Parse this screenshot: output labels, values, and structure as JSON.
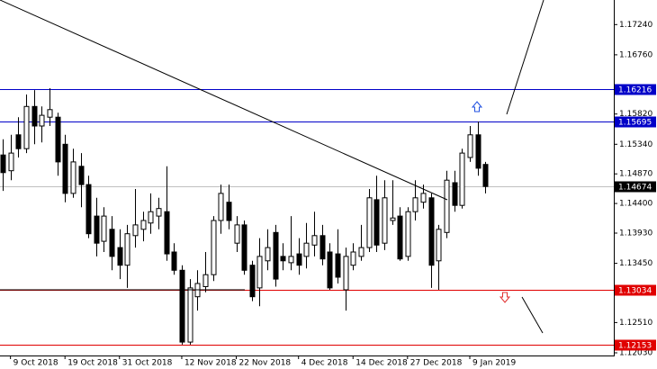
{
  "chart_data": {
    "type": "candlestick",
    "categories": [
      null,
      "9 Oct 2018",
      null,
      null,
      null,
      null,
      null,
      null,
      "19 Oct 2018",
      null,
      null,
      null,
      null,
      null,
      null,
      "31 Oct 2018",
      null,
      null,
      null,
      null,
      null,
      null,
      null,
      "12 Nov 2018",
      null,
      null,
      null,
      null,
      null,
      null,
      "22 Nov 2018",
      null,
      null,
      null,
      null,
      null,
      null,
      null,
      "4 Dec 2018",
      null,
      null,
      null,
      null,
      null,
      null,
      "14 Dec 2018",
      null,
      null,
      null,
      null,
      null,
      null,
      "27 Dec 2018",
      null,
      null,
      null,
      null,
      null,
      null,
      null,
      "9 Jan 2019",
      null,
      null
    ],
    "open": [
      1.1517,
      1.1492,
      1.1549,
      1.1527,
      1.1594,
      1.1563,
      1.1577,
      1.1577,
      1.1534,
      1.1456,
      1.1499,
      1.147,
      1.142,
      1.138,
      1.1399,
      1.137,
      1.1342,
      1.1389,
      1.1399,
      1.1409,
      1.142,
      1.1427,
      1.1363,
      1.1334,
      1.122,
      1.1292,
      1.1308,
      1.1327,
      1.1413,
      1.1442,
      1.1377,
      1.1406,
      1.1342,
      1.1306,
      1.1349,
      1.1394,
      1.1356,
      1.1346,
      1.136,
      1.1356,
      1.1374,
      1.1389,
      1.1363,
      1.136,
      1.1303,
      1.1342,
      1.1356,
      1.137,
      1.1446,
      1.1377,
      1.1413,
      1.142,
      1.1356,
      1.1427,
      1.1442,
      1.1449,
      1.1349,
      1.1394,
      1.1473,
      1.1437,
      1.1513,
      1.1549,
      1.1502
    ],
    "high": [
      1.1542,
      1.1549,
      1.1577,
      1.1613,
      1.162,
      1.1594,
      1.1623,
      1.1584,
      1.1549,
      1.1527,
      1.152,
      1.1484,
      1.1449,
      1.1434,
      1.142,
      1.1399,
      1.1406,
      1.1463,
      1.1427,
      1.1456,
      1.1449,
      1.1499,
      1.1377,
      1.1342,
      1.132,
      1.1334,
      1.1363,
      1.142,
      1.147,
      1.147,
      1.142,
      1.1413,
      1.1349,
      1.1385,
      1.1399,
      1.1406,
      1.1377,
      1.142,
      1.1385,
      1.1409,
      1.1427,
      1.1406,
      1.1377,
      1.1399,
      1.137,
      1.1377,
      1.1406,
      1.1463,
      1.1484,
      1.1477,
      1.1477,
      1.1434,
      1.1434,
      1.1477,
      1.147,
      1.1456,
      1.1406,
      1.1492,
      1.1492,
      1.1527,
      1.1563,
      1.157,
      1.1506
    ],
    "low": [
      1.146,
      1.1477,
      1.1513,
      1.152,
      1.1534,
      1.1537,
      1.1563,
      1.1484,
      1.1442,
      1.1449,
      1.1434,
      1.1385,
      1.1356,
      1.1363,
      1.1334,
      1.132,
      1.1306,
      1.137,
      1.138,
      1.1392,
      1.1399,
      1.1349,
      1.1327,
      1.1216,
      1.1216,
      1.127,
      1.1299,
      1.1317,
      1.1392,
      1.1399,
      1.1363,
      1.1327,
      1.1285,
      1.1277,
      1.1334,
      1.1308,
      1.1334,
      1.1334,
      1.1327,
      1.1337,
      1.1356,
      1.1342,
      1.1303,
      1.1313,
      1.127,
      1.1334,
      1.1349,
      1.1363,
      1.1363,
      1.1366,
      1.1406,
      1.1349,
      1.1349,
      1.1413,
      1.1432,
      1.1306,
      1.1303,
      1.1385,
      1.1427,
      1.1432,
      1.1506,
      1.1484,
      1.1456
    ],
    "close": [
      1.1489,
      1.152,
      1.1527,
      1.1594,
      1.1563,
      1.158,
      1.1589,
      1.1506,
      1.1456,
      1.1506,
      1.147,
      1.1392,
      1.1377,
      1.142,
      1.1356,
      1.1342,
      1.1392,
      1.1406,
      1.1413,
      1.1427,
      1.1432,
      1.136,
      1.1334,
      1.122,
      1.1306,
      1.1313,
      1.1327,
      1.1413,
      1.1456,
      1.1413,
      1.1406,
      1.1334,
      1.1292,
      1.1356,
      1.137,
      1.132,
      1.1349,
      1.1356,
      1.1342,
      1.1377,
      1.1389,
      1.1352,
      1.1306,
      1.1323,
      1.1356,
      1.1363,
      1.137,
      1.1449,
      1.1374,
      1.1449,
      1.1417,
      1.1352,
      1.1427,
      1.1449,
      1.1456,
      1.1342,
      1.1399,
      1.1477,
      1.1437,
      1.152,
      1.1549,
      1.1496,
      1.1467
    ],
    "ylim": [
      1.11987,
      1.1763
    ],
    "yticks": [
      {
        "value": 1.1724,
        "label": "1.17240"
      },
      {
        "value": 1.1676,
        "label": "1.16760"
      },
      {
        "value": 1.1582,
        "label": "1.15820"
      },
      {
        "value": 1.1534,
        "label": "1.15340"
      },
      {
        "value": 1.1487,
        "label": "1.14870"
      },
      {
        "value": 1.144,
        "label": "1.14400"
      },
      {
        "value": 1.1393,
        "label": "1.13930"
      },
      {
        "value": 1.1345,
        "label": "1.13450"
      },
      {
        "value": 1.1251,
        "label": "1.12510"
      },
      {
        "value": 1.1203,
        "label": "1.12030"
      }
    ],
    "levels": [
      {
        "value": 1.16216,
        "color": "#0000c8"
      },
      {
        "value": 1.15695,
        "color": "#0000c8"
      },
      {
        "value": 1.14674,
        "color": "#c0c0c0",
        "label_color": "#000000"
      },
      {
        "value": 1.13034,
        "color": "#e00000"
      },
      {
        "value": 1.12153,
        "color": "#e00000"
      }
    ],
    "up_color": "#ffffff",
    "down_color": "#000000"
  }
}
